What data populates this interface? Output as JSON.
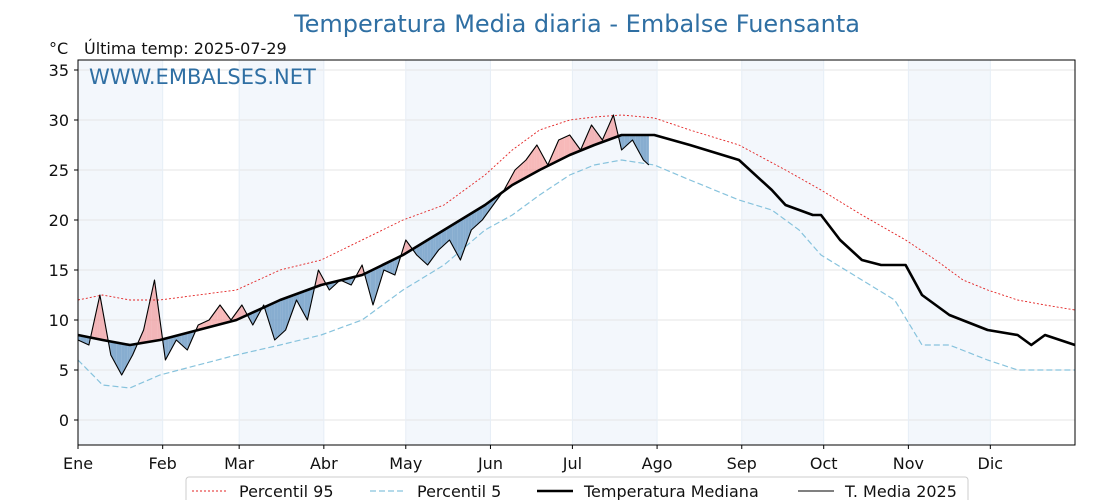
{
  "chart_data": {
    "type": "line",
    "title": "Temperatura Media diaria - Embalse Fuensanta",
    "unit_label": "°C",
    "last_temp_label": "Última temp: 2025-07-29",
    "watermark": "WWW.EMBALSES.NET",
    "x_range_days": [
      1,
      366
    ],
    "ylim": [
      -2.5,
      36
    ],
    "y_ticks": [
      0,
      5,
      10,
      15,
      20,
      25,
      30,
      35
    ],
    "month_labels": [
      "Ene",
      "Feb",
      "Mar",
      "Abr",
      "May",
      "Jun",
      "Jul",
      "Ago",
      "Sep",
      "Oct",
      "Nov",
      "Dic"
    ],
    "grid": true,
    "legend_position": "bottom",
    "colors": {
      "title": "#2f6fa3",
      "p95": "#e32222",
      "p5": "#87c3dd",
      "median": "#000000",
      "current": "#000000",
      "above_fill": "#f08080",
      "below_fill": "#6b9ac4",
      "band": "#dce8f5"
    },
    "series": [
      {
        "name": "Percentil 95",
        "style": "dotted-red",
        "x": [
          1,
          10,
          20,
          31,
          45,
          59,
          75,
          90,
          105,
          120,
          135,
          150,
          160,
          170,
          181,
          190,
          200,
          212,
          225,
          243,
          260,
          273,
          288,
          304,
          315,
          325,
          334,
          345,
          355,
          366
        ],
        "values": [
          12,
          12.5,
          12,
          12,
          12.5,
          13,
          15,
          16,
          18,
          20,
          21.5,
          24.5,
          27,
          29,
          30,
          30.3,
          30.5,
          30.2,
          29,
          27.5,
          25,
          23,
          20.5,
          18,
          16,
          14,
          13,
          12,
          11.5,
          11
        ]
      },
      {
        "name": "Percentil 5",
        "style": "dashed-lightblue",
        "x": [
          1,
          10,
          20,
          31,
          45,
          59,
          75,
          90,
          105,
          120,
          135,
          150,
          160,
          170,
          181,
          190,
          200,
          212,
          225,
          243,
          255,
          265,
          273,
          288,
          300,
          310,
          320,
          334,
          345,
          355,
          366
        ],
        "values": [
          6,
          3.5,
          3.2,
          4.5,
          5.5,
          6.5,
          7.5,
          8.5,
          10,
          13,
          15.5,
          19,
          20.5,
          22.5,
          24.5,
          25.5,
          26,
          25.5,
          24,
          22,
          21,
          19,
          16.5,
          14,
          12,
          7.5,
          7.5,
          6,
          5,
          5,
          5
        ]
      },
      {
        "name": "Temperatura Mediana",
        "style": "thick-black",
        "x": [
          1,
          10,
          20,
          31,
          45,
          59,
          75,
          90,
          105,
          120,
          135,
          150,
          160,
          170,
          181,
          190,
          200,
          212,
          225,
          243,
          255,
          260,
          270,
          273,
          280,
          288,
          295,
          304,
          310,
          320,
          334,
          345,
          350,
          355,
          366
        ],
        "values": [
          8.5,
          8,
          7.5,
          8,
          9,
          10,
          12,
          13.5,
          14.5,
          16.5,
          19,
          21.5,
          23.5,
          25,
          26.5,
          27.5,
          28.5,
          28.5,
          27.5,
          26,
          23,
          21.5,
          20.5,
          20.5,
          18,
          16,
          15.5,
          15.5,
          12.5,
          10.5,
          9,
          8.5,
          7.5,
          8.5,
          7.5
        ]
      },
      {
        "name": "T. Media 2025",
        "style": "thin-black",
        "x": [
          1,
          5,
          9,
          13,
          17,
          21,
          25,
          29,
          33,
          37,
          41,
          45,
          49,
          53,
          57,
          61,
          65,
          69,
          73,
          77,
          81,
          85,
          89,
          93,
          97,
          101,
          105,
          109,
          113,
          117,
          121,
          125,
          129,
          133,
          137,
          141,
          145,
          149,
          153,
          157,
          161,
          165,
          169,
          173,
          177,
          181,
          185,
          189,
          193,
          197,
          200,
          204,
          208,
          210
        ],
        "values": [
          8,
          7.5,
          12.5,
          6.5,
          4.5,
          6.5,
          9,
          14,
          6,
          8,
          7,
          9.5,
          10,
          11.5,
          10,
          11.5,
          9.5,
          11.5,
          8,
          9,
          12,
          10,
          15,
          13,
          14,
          13.5,
          15.5,
          11.5,
          15,
          14.5,
          18,
          16.5,
          15.5,
          17,
          18,
          16,
          19,
          20,
          21.5,
          23,
          25,
          26,
          27.5,
          25.5,
          28,
          28.5,
          27,
          29.5,
          28,
          30.5,
          27,
          28,
          26,
          25.5
        ]
      }
    ]
  },
  "legend": [
    {
      "label": "Percentil 95",
      "style": "dotted-red"
    },
    {
      "label": "Percentil 5",
      "style": "dashed-lightblue"
    },
    {
      "label": "Temperatura Mediana",
      "style": "thick-black"
    },
    {
      "label": "T. Media 2025",
      "style": "thin-black"
    }
  ]
}
